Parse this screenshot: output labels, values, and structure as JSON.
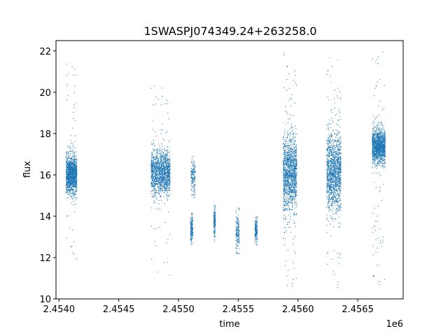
{
  "chart_data": {
    "type": "scatter",
    "title": "1SWASPJ074349.24+263258.0",
    "xlabel": "time",
    "ylabel": "flux",
    "x_offset_label": "1e6",
    "xlim": [
      2453975,
      2456880
    ],
    "ylim": [
      10,
      22.5
    ],
    "x_ticks": [
      2454000,
      2454500,
      2455000,
      2455500,
      2456000,
      2456500
    ],
    "x_tick_labels": [
      "2.4540",
      "2.4545",
      "2.4550",
      "2.4555",
      "2.4560",
      "2.4565"
    ],
    "y_ticks": [
      10,
      12,
      14,
      16,
      18,
      20,
      22
    ],
    "y_tick_labels": [
      "10",
      "12",
      "14",
      "16",
      "18",
      "20",
      "22"
    ],
    "grid": false,
    "point_color": "#1f77b4",
    "seasons": [
      {
        "x_start": 2454060,
        "x_end": 2454150,
        "center": 16.0,
        "spread": 0.45,
        "y_min": 11.3,
        "y_max": 21.8,
        "density": "high"
      },
      {
        "x_start": 2454770,
        "x_end": 2454930,
        "center": 16.1,
        "spread": 0.55,
        "y_min": 11.0,
        "y_max": 20.5,
        "density": "high"
      },
      {
        "x_start": 2455105,
        "x_end": 2455140,
        "center": 15.9,
        "spread": 0.4,
        "y_min": 14.9,
        "y_max": 17.4,
        "density": "low"
      },
      {
        "x_start": 2455100,
        "x_end": 2455120,
        "center": 13.4,
        "spread": 0.3,
        "y_min": 12.5,
        "y_max": 14.2,
        "density": "low"
      },
      {
        "x_start": 2455295,
        "x_end": 2455310,
        "center": 13.8,
        "spread": 0.3,
        "y_min": 12.8,
        "y_max": 14.8,
        "density": "low"
      },
      {
        "x_start": 2455480,
        "x_end": 2455510,
        "center": 13.2,
        "spread": 0.45,
        "y_min": 12.2,
        "y_max": 14.4,
        "density": "low"
      },
      {
        "x_start": 2455640,
        "x_end": 2455660,
        "center": 13.3,
        "spread": 0.3,
        "y_min": 12.6,
        "y_max": 14.0,
        "density": "low"
      },
      {
        "x_start": 2455875,
        "x_end": 2455990,
        "center": 16.1,
        "spread": 0.9,
        "y_min": 10.6,
        "y_max": 22.0,
        "density": "high"
      },
      {
        "x_start": 2456240,
        "x_end": 2456360,
        "center": 16.2,
        "spread": 0.95,
        "y_min": 10.5,
        "y_max": 21.9,
        "density": "high"
      },
      {
        "x_start": 2456620,
        "x_end": 2456730,
        "center": 17.4,
        "spread": 0.4,
        "y_min": 10.6,
        "y_max": 22.0,
        "density": "high"
      }
    ]
  }
}
